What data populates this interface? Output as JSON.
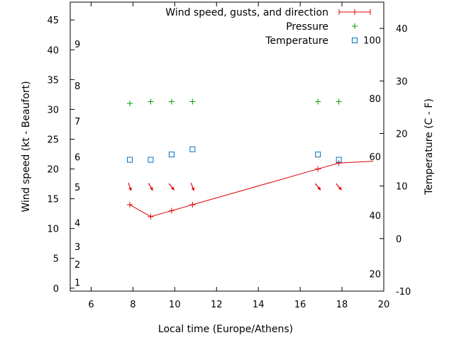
{
  "chart_data": {
    "type": "line",
    "xlabel": "Local time (Europe/Athens)",
    "ylabel": "Wind speed (kt - Beaufort)",
    "y2label": "Temperature (C - F)",
    "xlim": [
      5,
      20
    ],
    "ylim": [
      -0.5,
      48
    ],
    "y2lim": [
      -10,
      45
    ],
    "grid": false,
    "legend_position": "top-right",
    "x_ticks": [
      6,
      8,
      10,
      12,
      14,
      16,
      18,
      20
    ],
    "y_ticks": [
      0,
      5,
      10,
      15,
      20,
      25,
      30,
      35,
      40,
      45
    ],
    "y2_ticks": [
      -10,
      0,
      10,
      20,
      30,
      40
    ],
    "beaufort_labels": [
      {
        "text": "1",
        "y": 1
      },
      {
        "text": "2",
        "y": 4
      },
      {
        "text": "3",
        "y": 7
      },
      {
        "text": "4",
        "y": 11
      },
      {
        "text": "5",
        "y": 17
      },
      {
        "text": "6",
        "y": 22
      },
      {
        "text": "7",
        "y": 28
      },
      {
        "text": "8",
        "y": 34
      },
      {
        "text": "9",
        "y": 41
      }
    ],
    "fahrenheit_labels": [
      {
        "text": "20",
        "y2": -6.7
      },
      {
        "text": "40",
        "y2": 4.4
      },
      {
        "text": "60",
        "y2": 15.6
      },
      {
        "text": "80",
        "y2": 26.7
      },
      {
        "text": "100",
        "y2": 37.8
      }
    ],
    "series": [
      {
        "name": "Wind speed, gusts, and direction",
        "color": "#e00000",
        "marker": "plus-line",
        "x": [
          7.85,
          8.85,
          9.85,
          10.85,
          16.85,
          17.85,
          19.5
        ],
        "y": [
          14,
          12,
          13,
          14,
          20,
          21,
          21.3
        ],
        "direction_x": [
          7.85,
          8.85,
          9.85,
          10.85,
          16.85,
          17.85
        ],
        "direction_deg": [
          160,
          150,
          140,
          160,
          140,
          140
        ]
      },
      {
        "name": "Pressure",
        "color": "#00a000",
        "marker": "plus",
        "x": [
          7.85,
          8.85,
          9.85,
          10.85,
          16.85,
          17.85
        ],
        "y": [
          31,
          31.3,
          31.3,
          31.3,
          31.3,
          31.3
        ]
      },
      {
        "name": "Temperature",
        "color": "#0070c0",
        "marker": "square",
        "axis": "y2",
        "x": [
          7.85,
          8.85,
          9.85,
          10.85,
          16.85,
          17.85
        ],
        "y": [
          15,
          15,
          16,
          17,
          16,
          15
        ]
      }
    ]
  }
}
